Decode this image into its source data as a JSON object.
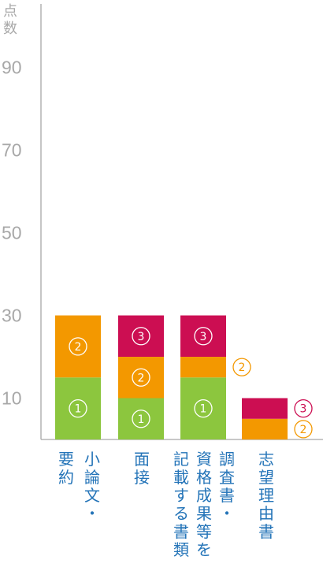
{
  "chart_data": {
    "type": "bar",
    "stacked": true,
    "ylabel": "点数",
    "yticks": [
      10,
      30,
      50,
      70,
      90
    ],
    "ylim": [
      0,
      100
    ],
    "categories": [
      {
        "columns": [
          "小論文・",
          "要約"
        ],
        "values": [
          15,
          15,
          0
        ],
        "labels": [
          "①",
          "②",
          ""
        ]
      },
      {
        "columns": [
          "面接"
        ],
        "values": [
          10,
          10,
          10
        ],
        "labels": [
          "①",
          "②",
          "③"
        ]
      },
      {
        "columns": [
          "調査書・",
          "資格成果等を",
          "記載する書類"
        ],
        "values": [
          15,
          5,
          10
        ],
        "labels": [
          "①",
          "②",
          "③"
        ]
      },
      {
        "columns": [
          "志望理由書"
        ],
        "values": [
          0,
          5,
          5
        ],
        "labels": [
          "",
          "②",
          "③"
        ]
      }
    ],
    "series_colors": [
      "#8cc63e",
      "#f39800",
      "#cc0e52"
    ],
    "grid": false,
    "legend": "none"
  }
}
